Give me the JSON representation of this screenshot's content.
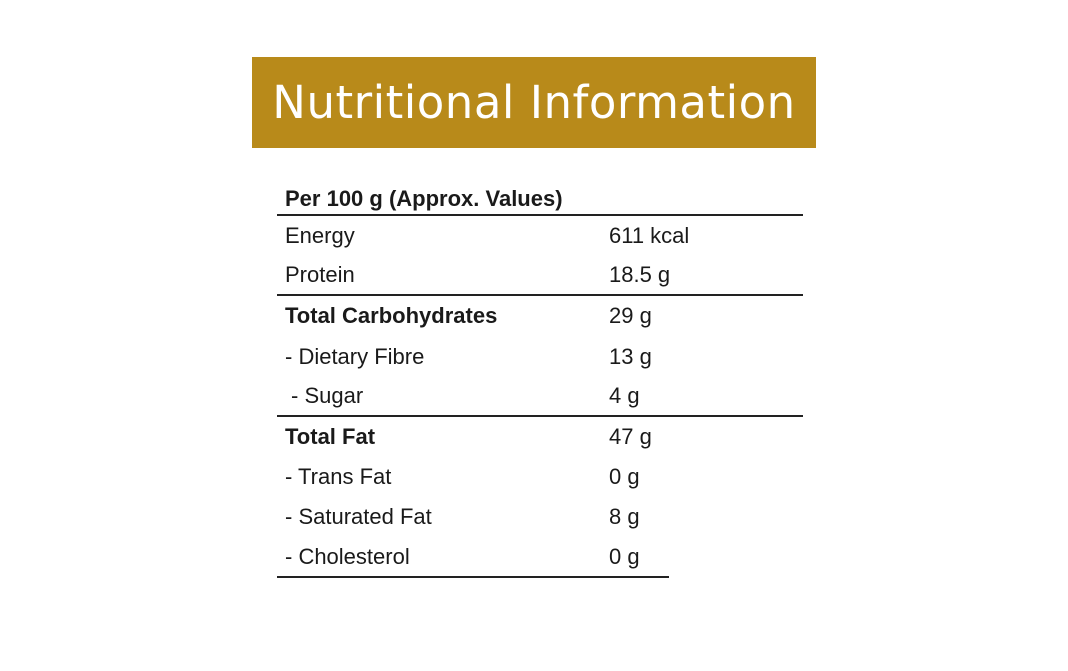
{
  "banner": {
    "title": "Nutritional Information"
  },
  "table": {
    "header": "Per 100 g (Approx. Values)",
    "rows": [
      {
        "label": "Energy",
        "value": "611 kcal"
      },
      {
        "label": "Protein",
        "value": "18.5 g"
      },
      {
        "label": "Total Carbohydrates",
        "value": "29 g"
      },
      {
        "label": "- Dietary Fibre",
        "value": "13 g"
      },
      {
        "label": "- Sugar",
        "value": "4 g"
      },
      {
        "label": "Total Fat",
        "value": "47 g"
      },
      {
        "label": "- Trans Fat",
        "value": "0 g"
      },
      {
        "label": "- Saturated Fat",
        "value": "8 g"
      },
      {
        "label": "- Cholesterol",
        "value": "0 g"
      }
    ]
  },
  "colors": {
    "banner_bg": "#b88a1a",
    "banner_text": "#ffffff"
  }
}
